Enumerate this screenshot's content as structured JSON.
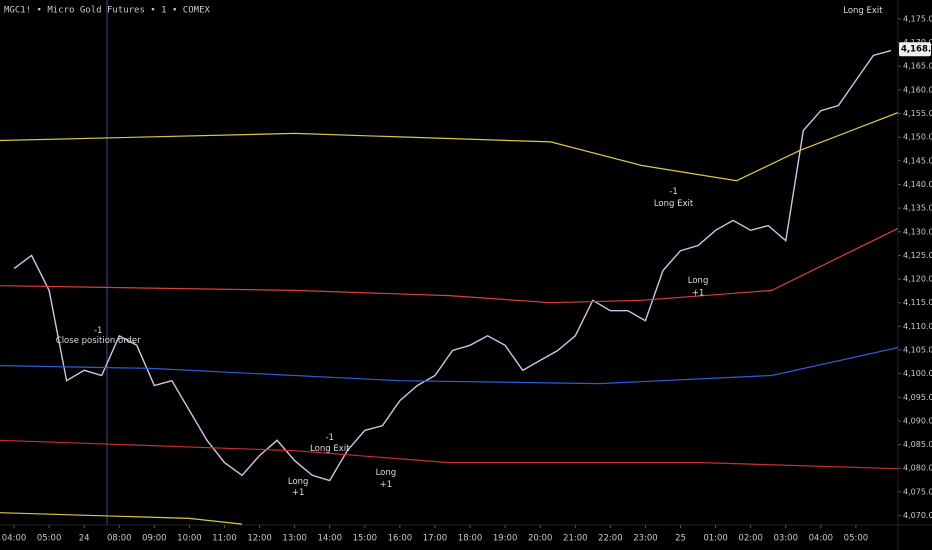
{
  "chart_data": {
    "type": "line",
    "title": "MGC1! • Micro Gold Futures • 1 • COMEX",
    "xlim": [
      -0.4,
      25.2
    ],
    "ylim": [
      4068,
      4179
    ],
    "xticks": [
      {
        "value": 0,
        "label": "04:00"
      },
      {
        "value": 1,
        "label": "05:00"
      },
      {
        "value": 2,
        "label": "24"
      },
      {
        "value": 3,
        "label": "08:00"
      },
      {
        "value": 4,
        "label": "09:00"
      },
      {
        "value": 5,
        "label": "10:00"
      },
      {
        "value": 6,
        "label": "11:00"
      },
      {
        "value": 7,
        "label": "12:00"
      },
      {
        "value": 8,
        "label": "13:00"
      },
      {
        "value": 9,
        "label": "14:00"
      },
      {
        "value": 10,
        "label": "15:00"
      },
      {
        "value": 11,
        "label": "16:00"
      },
      {
        "value": 12,
        "label": "17:00"
      },
      {
        "value": 13,
        "label": "18:00"
      },
      {
        "value": 14,
        "label": "19:00"
      },
      {
        "value": 15,
        "label": "20:00"
      },
      {
        "value": 16,
        "label": "21:00"
      },
      {
        "value": 17,
        "label": "22:00"
      },
      {
        "value": 18,
        "label": "23:00"
      },
      {
        "value": 19,
        "label": "25"
      },
      {
        "value": 20,
        "label": "01:00"
      },
      {
        "value": 21,
        "label": "02:00"
      },
      {
        "value": 22,
        "label": "03:00"
      },
      {
        "value": 23,
        "label": "04:00"
      },
      {
        "value": 24,
        "label": "05:00"
      }
    ],
    "yticks": [
      {
        "value": 4070,
        "label": "4,070.0"
      },
      {
        "value": 4075,
        "label": "4,075.0"
      },
      {
        "value": 4080,
        "label": "4,080.0"
      },
      {
        "value": 4085,
        "label": "4,085.0"
      },
      {
        "value": 4090,
        "label": "4,090.0"
      },
      {
        "value": 4095,
        "label": "4,095.0"
      },
      {
        "value": 4100,
        "label": "4,100.0"
      },
      {
        "value": 4105,
        "label": "4,105.0"
      },
      {
        "value": 4110,
        "label": "4,110.0"
      },
      {
        "value": 4115,
        "label": "4,115.0"
      },
      {
        "value": 4120,
        "label": "4,120.0"
      },
      {
        "value": 4125,
        "label": "4,125.0"
      },
      {
        "value": 4130,
        "label": "4,130.0"
      },
      {
        "value": 4135,
        "label": "4,135.0"
      },
      {
        "value": 4140,
        "label": "4,140.0"
      },
      {
        "value": 4145,
        "label": "4,145.0"
      },
      {
        "value": 4150,
        "label": "4,150.0"
      },
      {
        "value": 4155,
        "label": "4,155.0"
      },
      {
        "value": 4160,
        "label": "4,160.0"
      },
      {
        "value": 4165,
        "label": "4,165.0"
      },
      {
        "value": 4170,
        "label": "4,170.0"
      },
      {
        "value": 4175,
        "label": "4,175.0"
      }
    ],
    "series": [
      {
        "color": "#d8bfe6",
        "x": [
          0,
          0.5,
          1,
          1.5,
          2,
          2.5,
          3,
          3.5,
          4,
          4.5,
          5,
          5.5,
          6,
          6.5,
          7,
          7.5,
          8,
          8.5,
          9,
          9.5,
          10,
          10.5,
          11,
          11.5,
          12,
          12.5,
          13,
          13.5,
          14,
          14.5,
          15,
          15.5,
          16,
          16.5,
          17,
          17.5,
          18,
          18.5,
          19,
          19.5,
          20,
          20.5,
          21,
          21.5,
          22,
          22.5,
          23,
          23.5,
          24,
          24.5,
          25
        ],
        "values": [
          4122.2,
          4125,
          4117.6,
          4098.5,
          4100.7,
          4099.6,
          4108,
          4106,
          4097.5,
          4098.5,
          4092.2,
          4085.9,
          4081.2,
          4078.5,
          4082.7,
          4085.9,
          4081.6,
          4078.5,
          4077.4,
          4083.7,
          4088,
          4089,
          4094.3,
          4097.5,
          4099.6,
          4104.9,
          4106,
          4108,
          4106,
          4100.7,
          4102.8,
          4104.9,
          4108,
          4115.5,
          4113.3,
          4113.3,
          4111.2,
          4121.8,
          4126,
          4127.1,
          4130.3,
          4132.4,
          4130.3,
          4131.3,
          4128.1,
          4151.4,
          4155.6,
          4156.7,
          4162,
          4167.3,
          4168.3
        ]
      },
      {
        "color": "#d8c84a",
        "x": [
          -0.4,
          8,
          15.3,
          17.9,
          20.6,
          22.4,
          25.2
        ],
        "values": [
          4149.3,
          4150.8,
          4149,
          4144,
          4140.8,
          4147.2,
          4155.2
        ]
      },
      {
        "color": "#d9403a",
        "x": [
          -0.4,
          8,
          12.4,
          15.3,
          17.9,
          21.6,
          25.2
        ],
        "values": [
          4118.6,
          4117.6,
          4116.5,
          4115,
          4115.5,
          4117.6,
          4130.7
        ]
      },
      {
        "color": "#2f5bd8",
        "x": [
          -0.4,
          3.9,
          11,
          16.7,
          21.6,
          25.2
        ],
        "values": [
          4101.7,
          4101.1,
          4098.5,
          4097.9,
          4099.6,
          4105.5
        ]
      },
      {
        "color": "#c8302e",
        "x": [
          -0.4,
          8,
          12.4,
          19.6,
          25.2
        ],
        "values": [
          4085.9,
          4083.7,
          4081.2,
          4081.2,
          4079.9
        ]
      },
      {
        "color": "#d8c84a",
        "x": [
          -0.4,
          5,
          6.5
        ],
        "values": [
          4070.6,
          4069.4,
          4068.2
        ]
      }
    ],
    "annotations": [
      {
        "text": "Long Exit",
        "x": 24.2,
        "y": 4176.8
      },
      {
        "text": "-1",
        "x": 2.4,
        "y": 4109.1
      },
      {
        "text": "Close position order",
        "x": 2.4,
        "y": 4107
      },
      {
        "text": "-1",
        "x": 9,
        "y": 4086.5
      },
      {
        "text": "Long Exit",
        "x": 9,
        "y": 4084.2
      },
      {
        "text": "Long",
        "x": 8.1,
        "y": 4077.2
      },
      {
        "text": "+1",
        "x": 8.1,
        "y": 4074.9
      },
      {
        "text": "Long",
        "x": 10.6,
        "y": 4079.1
      },
      {
        "text": "+1",
        "x": 10.6,
        "y": 4076.6
      },
      {
        "text": "-1",
        "x": 18.8,
        "y": 4138.5
      },
      {
        "text": "Long Exit",
        "x": 18.8,
        "y": 4136
      },
      {
        "text": "Long",
        "x": 19.5,
        "y": 4119.7
      },
      {
        "text": "+1",
        "x": 19.5,
        "y": 4117.1
      }
    ],
    "last_price": {
      "value": 4168.6,
      "label": "4,168.6"
    }
  }
}
